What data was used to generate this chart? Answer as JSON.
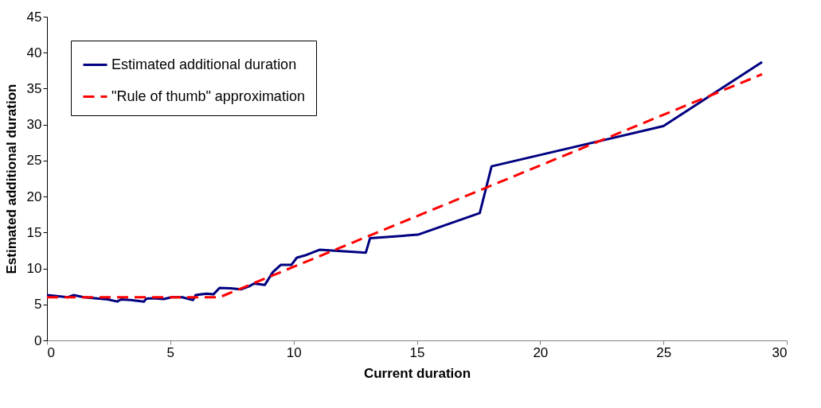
{
  "chart_data": {
    "type": "line",
    "xlabel": "Current duration",
    "ylabel": "Estimated additional duration",
    "xlim": [
      0,
      30
    ],
    "xticks": [
      0,
      5,
      10,
      15,
      20,
      25,
      30
    ],
    "ylim": [
      0,
      45
    ],
    "yticks": [
      0,
      5,
      10,
      15,
      20,
      25,
      30,
      35,
      40,
      45
    ],
    "grid": false,
    "legend": "top left",
    "marker": "none",
    "series": [
      {
        "name": "Estimated additional duration",
        "color": "#000080",
        "line_style": "solid",
        "x": [
          0,
          0.85,
          1.07,
          1.5,
          2.47,
          2.85,
          3.0,
          3.4,
          3.93,
          4.03,
          4.3,
          4.73,
          5.05,
          5.49,
          5.92,
          6.03,
          6.46,
          6.75,
          7.0,
          7.43,
          7.86,
          8.19,
          8.4,
          8.83,
          9.16,
          9.48,
          9.91,
          10.13,
          10.45,
          11.05,
          12.7,
          12.93,
          13.1,
          15.04,
          17.55,
          18.03,
          25,
          29
        ],
        "values": [
          6.3,
          6.0,
          6.3,
          6.0,
          5.7,
          5.4,
          5.7,
          5.6,
          5.4,
          5.8,
          5.85,
          5.75,
          6.0,
          6.0,
          5.6,
          6.3,
          6.5,
          6.4,
          7.3,
          7.25,
          7.1,
          7.5,
          7.9,
          7.7,
          9.5,
          10.5,
          10.5,
          11.5,
          11.8,
          12.6,
          12.25,
          12.2,
          14.2,
          14.7,
          17.7,
          24.2,
          29.8,
          38.7
        ]
      },
      {
        "name": "\"Rule of thumb\" approximation",
        "color": "#ff0000",
        "line_style": "dashed",
        "x": [
          0,
          7,
          29
        ],
        "values": [
          6,
          6,
          37
        ]
      }
    ]
  }
}
